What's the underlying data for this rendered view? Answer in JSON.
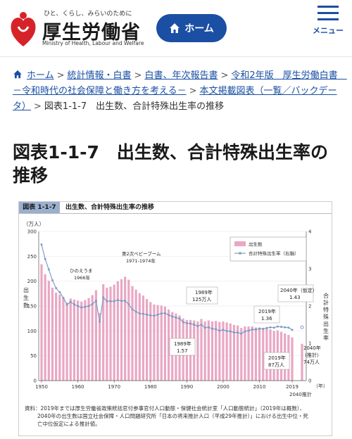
{
  "header": {
    "tagline": "ひと、くらし、みらいのために",
    "logo_name": "厚生労働省",
    "logo_en": "Ministry of Health, Labour and Welfare",
    "home_label": "ホーム",
    "menu_label": "メニュー"
  },
  "breadcrumb": {
    "items": [
      "ホーム",
      "統計情報・白書",
      "白書、年次報告書",
      "令和2年版　厚生労働白書　－令和時代の社会保障と働き方を考える－",
      "本文掲載図表（一覧／バックデータ）"
    ],
    "current": "図表1-1-7　出生数、合計特殊出生率の推移"
  },
  "page_title": "図表1-1-7　出生数、合計特殊出生率の推移",
  "figure": {
    "badge": "図表 1-1-7",
    "title": "出生数、合計特殊出生率の推移",
    "note_line1": "資料：2019年までは厚生労働省政策統括官付参事官付人口動態・保健社会統計室「人口動態統計」（2019年は概数）、",
    "note_line2": "2040年の出生数は国立社会保障・人口問題研究所「日本の将来推計人口（平成29年推計）」における出生中位・死",
    "note_line3": "亡中位仮定による推計値。"
  },
  "chart_data": {
    "type": "bar",
    "y_left_unit": "（万人）",
    "y_left_label": "出生数",
    "y_right_label": "合計特殊出生率",
    "x_unit": "（年）",
    "ylim_left": [
      0,
      300
    ],
    "ylim_right": [
      0,
      4
    ],
    "y_left_ticks": [
      "300",
      "250",
      "200",
      "150",
      "100",
      "50",
      "0"
    ],
    "y_right_ticks": [
      "4",
      "3",
      "2",
      "1",
      "0"
    ],
    "x_ticks": [
      "1950",
      "1960",
      "1970",
      "1980",
      "1990",
      "2000",
      "2010",
      "2019"
    ],
    "x_label_2040": "2040推計",
    "legend": [
      "出生数",
      "合計特殊出生率（右軸）"
    ],
    "bar_color": "#e9a7c4",
    "line_color": "#7f9cc6",
    "years": [
      1950,
      1951,
      1952,
      1953,
      1954,
      1955,
      1956,
      1957,
      1958,
      1959,
      1960,
      1961,
      1962,
      1963,
      1964,
      1965,
      1966,
      1967,
      1968,
      1969,
      1970,
      1971,
      1972,
      1973,
      1974,
      1975,
      1976,
      1977,
      1978,
      1979,
      1980,
      1981,
      1982,
      1983,
      1984,
      1985,
      1986,
      1987,
      1988,
      1989,
      1990,
      1991,
      1992,
      1993,
      1994,
      1995,
      1996,
      1997,
      1998,
      1999,
      2000,
      2001,
      2002,
      2003,
      2004,
      2005,
      2006,
      2007,
      2008,
      2009,
      2010,
      2011,
      2012,
      2013,
      2014,
      2015,
      2016,
      2017,
      2018,
      2019
    ],
    "births": [
      234,
      214,
      201,
      187,
      177,
      173,
      167,
      157,
      165,
      163,
      161,
      159,
      162,
      166,
      172,
      182,
      136,
      194,
      187,
      189,
      193,
      200,
      204,
      209,
      203,
      190,
      183,
      176,
      171,
      164,
      158,
      153,
      152,
      151,
      149,
      143,
      138,
      135,
      131,
      125,
      122,
      122,
      121,
      119,
      124,
      119,
      121,
      119,
      120,
      118,
      119,
      117,
      115,
      112,
      111,
      106,
      109,
      109,
      109,
      107,
      107,
      105,
      104,
      103,
      100,
      101,
      98,
      95,
      92,
      87
    ],
    "tfr": [
      3.65,
      3.26,
      2.98,
      2.69,
      2.48,
      2.37,
      2.22,
      2.04,
      2.11,
      2.04,
      2.0,
      1.96,
      1.98,
      2.0,
      2.05,
      2.14,
      1.58,
      2.23,
      2.13,
      2.13,
      2.13,
      2.16,
      2.14,
      2.14,
      2.05,
      1.91,
      1.85,
      1.8,
      1.79,
      1.77,
      1.75,
      1.74,
      1.77,
      1.8,
      1.81,
      1.76,
      1.72,
      1.69,
      1.66,
      1.57,
      1.54,
      1.53,
      1.5,
      1.46,
      1.5,
      1.42,
      1.43,
      1.39,
      1.38,
      1.34,
      1.36,
      1.33,
      1.32,
      1.29,
      1.29,
      1.26,
      1.32,
      1.34,
      1.37,
      1.37,
      1.39,
      1.39,
      1.41,
      1.43,
      1.42,
      1.45,
      1.44,
      1.43,
      1.42,
      1.36
    ],
    "births_2040": 74,
    "tfr_2040": 1.43,
    "annotations": {
      "hinoeuma": "ひのえうま",
      "hinoeuma_year": "1966年",
      "babyboom": "第2次ベビーブーム",
      "babyboom_years": "1971-1974年",
      "a1989_births_year": "1989年",
      "a1989_births": "125万人",
      "a1989_tfr_year": "1989年",
      "a1989_tfr": "1.57",
      "a2019_tfr_year": "2019年",
      "a2019_tfr": "1.36",
      "a2040_tfr_year": "2040年（仮定）",
      "a2040_tfr": "1.43",
      "a2019_births_year": "2019年",
      "a2019_births": "87万人",
      "a2040_births_year": "2040年",
      "a2040_births_note": "（推計）",
      "a2040_births": "74万人"
    }
  }
}
